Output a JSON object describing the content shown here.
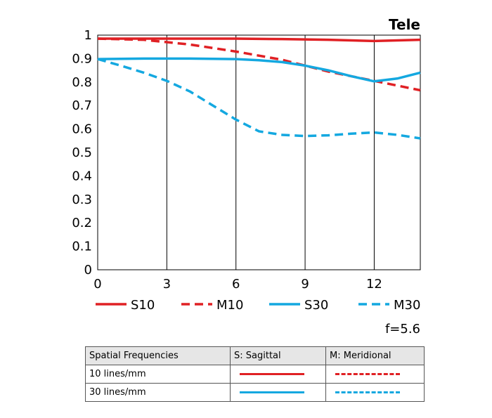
{
  "chart_data": {
    "type": "line",
    "title": "Tele",
    "note": "f=5.6",
    "xlim": [
      0,
      14
    ],
    "ylim": [
      0,
      1
    ],
    "x_ticks": [
      0,
      3,
      6,
      9,
      12
    ],
    "x_tick_labels": [
      "0",
      "3",
      "6",
      "9",
      "12"
    ],
    "y_ticks": [
      0,
      0.1,
      0.2,
      0.3,
      0.4,
      0.5,
      0.6,
      0.7,
      0.8,
      0.9,
      1
    ],
    "y_tick_labels": [
      "0",
      "0.1",
      "0.2",
      "0.3",
      "0.4",
      "0.5",
      "0.6",
      "0.7",
      "0.8",
      "0.9",
      "1"
    ],
    "grid": "vertical",
    "legend_position": "bottom",
    "series": [
      {
        "name": "S10",
        "color": "#e02024",
        "dash": "solid",
        "x": [
          0,
          2,
          4,
          6,
          8,
          10,
          12,
          14
        ],
        "y": [
          0.985,
          0.985,
          0.985,
          0.985,
          0.983,
          0.98,
          0.975,
          0.98
        ]
      },
      {
        "name": "M10",
        "color": "#e02024",
        "dash": "dashed",
        "x": [
          0,
          2,
          4,
          6,
          8,
          9,
          10,
          12,
          14
        ],
        "y": [
          0.985,
          0.98,
          0.96,
          0.93,
          0.895,
          0.87,
          0.845,
          0.805,
          0.765
        ]
      },
      {
        "name": "S30",
        "color": "#14a8e0",
        "dash": "solid",
        "x": [
          0,
          2,
          4,
          6,
          7,
          8,
          9,
          10,
          11,
          12,
          13,
          14
        ],
        "y": [
          0.898,
          0.9,
          0.9,
          0.898,
          0.893,
          0.885,
          0.87,
          0.85,
          0.825,
          0.803,
          0.815,
          0.84
        ]
      },
      {
        "name": "M30",
        "color": "#14a8e0",
        "dash": "dashed",
        "x": [
          0,
          1,
          2,
          3,
          4,
          5,
          6,
          7,
          8,
          9,
          10,
          11,
          12,
          13,
          14
        ],
        "y": [
          0.898,
          0.87,
          0.84,
          0.805,
          0.76,
          0.7,
          0.64,
          0.59,
          0.575,
          0.57,
          0.573,
          0.58,
          0.585,
          0.575,
          0.56
        ]
      }
    ]
  },
  "table": {
    "headers": [
      "Spatial Frequencies",
      "S: Sagittal",
      "M: Meridional"
    ],
    "rows": [
      {
        "label": "10 lines/mm",
        "sagittal_color": "#e02024",
        "meridional_color": "#e02024"
      },
      {
        "label": "30 lines/mm",
        "sagittal_color": "#14a8e0",
        "meridional_color": "#14a8e0"
      }
    ]
  }
}
